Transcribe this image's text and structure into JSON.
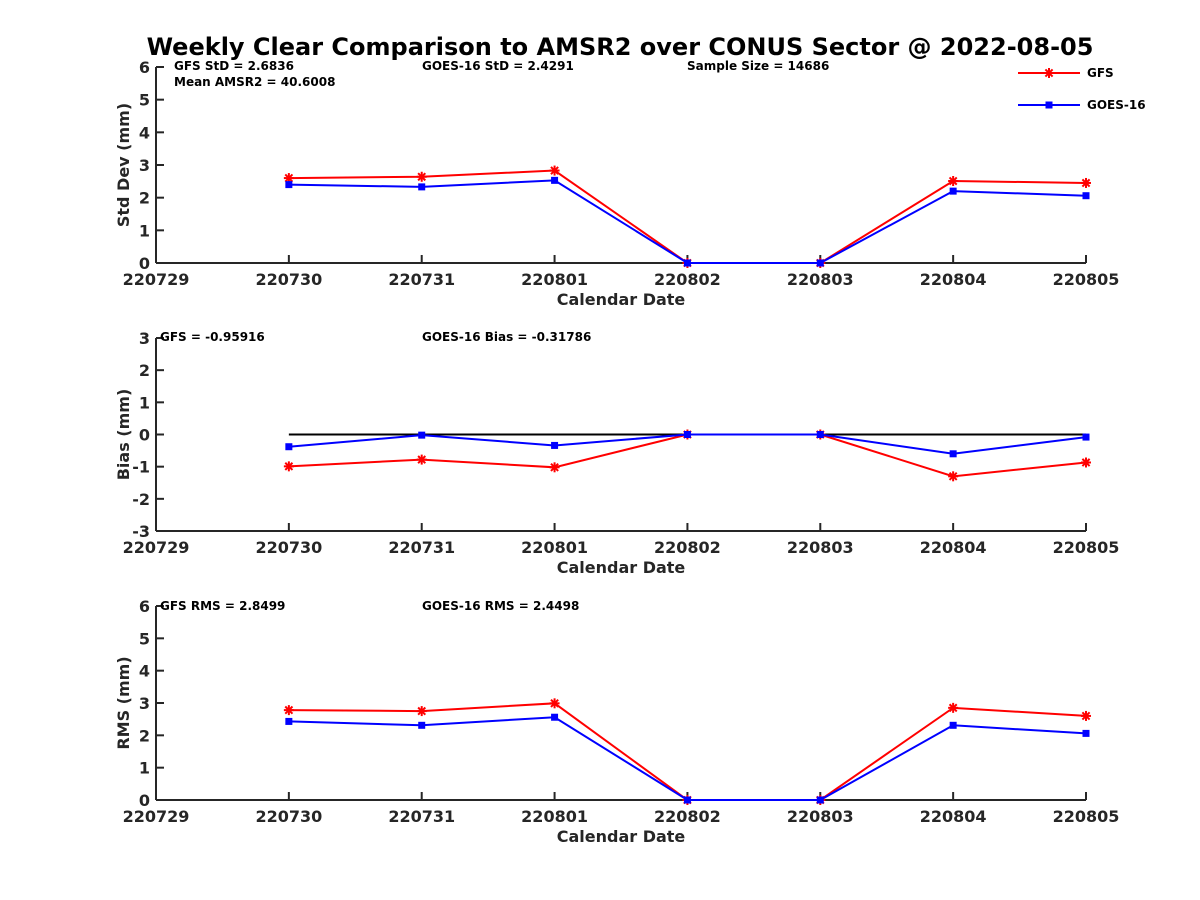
{
  "title": "Weekly Clear Comparison to AMSR2 over CONUS Sector @ 2022-08-05",
  "colors": {
    "GFS": "#ff0000",
    "GOES-16": "#0000ff",
    "zero_line": "#000000",
    "axes": "#262626"
  },
  "legend": {
    "placement": "top-right",
    "entries": [
      {
        "label": "GFS",
        "marker": "asterisk"
      },
      {
        "label": "GOES-16",
        "marker": "square"
      }
    ]
  },
  "chart_data": [
    {
      "type": "line",
      "ylabel": "Std Dev (mm)",
      "xlabel": "Calendar Date",
      "categories": [
        "220729",
        "220730",
        "220731",
        "220801",
        "220802",
        "220803",
        "220804",
        "220805"
      ],
      "ylim": [
        0,
        6
      ],
      "yticks": [
        "0",
        "1",
        "2",
        "3",
        "4",
        "5",
        "6"
      ],
      "zero_line": false,
      "series": [
        {
          "name": "GFS",
          "x": [
            "220730",
            "220731",
            "220801",
            "220802",
            "220803",
            "220804",
            "220805"
          ],
          "values": [
            2.6,
            2.64,
            2.83,
            0,
            0,
            2.51,
            2.45
          ]
        },
        {
          "name": "GOES-16",
          "x": [
            "220730",
            "220731",
            "220801",
            "220802",
            "220803",
            "220804",
            "220805"
          ],
          "values": [
            2.4,
            2.33,
            2.53,
            0,
            0,
            2.2,
            2.06
          ]
        }
      ],
      "annotations": {
        "left": [
          "GFS StD = 2.6836",
          "Mean AMSR2 = 40.6008"
        ],
        "middle": "GOES-16 StD = 2.4291",
        "right": "Sample Size = 14686"
      }
    },
    {
      "type": "line",
      "ylabel": "Bias (mm)",
      "xlabel": "Calendar Date",
      "categories": [
        "220729",
        "220730",
        "220731",
        "220801",
        "220802",
        "220803",
        "220804",
        "220805"
      ],
      "ylim": [
        -3,
        3
      ],
      "yticks": [
        "-3",
        "-2",
        "-1",
        "0",
        "1",
        "2",
        "3"
      ],
      "zero_line": true,
      "series": [
        {
          "name": "GFS",
          "x": [
            "220730",
            "220731",
            "220801",
            "220802",
            "220803",
            "220804",
            "220805"
          ],
          "values": [
            -0.99,
            -0.78,
            -1.02,
            0,
            0,
            -1.3,
            -0.87
          ]
        },
        {
          "name": "GOES-16",
          "x": [
            "220730",
            "220731",
            "220801",
            "220802",
            "220803",
            "220804",
            "220805"
          ],
          "values": [
            -0.38,
            -0.02,
            -0.34,
            0,
            0,
            -0.6,
            -0.08
          ]
        }
      ],
      "annotations": {
        "left": [
          "GFS = -0.95916"
        ],
        "middle": "GOES-16 Bias  = -0.31786",
        "right": ""
      }
    },
    {
      "type": "line",
      "ylabel": "RMS (mm)",
      "xlabel": "Calendar Date",
      "categories": [
        "220729",
        "220730",
        "220731",
        "220801",
        "220802",
        "220803",
        "220804",
        "220805"
      ],
      "ylim": [
        0,
        6
      ],
      "yticks": [
        "0",
        "1",
        "2",
        "3",
        "4",
        "5",
        "6"
      ],
      "zero_line": false,
      "series": [
        {
          "name": "GFS",
          "x": [
            "220730",
            "220731",
            "220801",
            "220802",
            "220803",
            "220804",
            "220805"
          ],
          "values": [
            2.78,
            2.75,
            2.99,
            0,
            0,
            2.85,
            2.6
          ]
        },
        {
          "name": "GOES-16",
          "x": [
            "220730",
            "220731",
            "220801",
            "220802",
            "220803",
            "220804",
            "220805"
          ],
          "values": [
            2.43,
            2.31,
            2.56,
            0,
            0,
            2.31,
            2.06
          ]
        }
      ],
      "annotations": {
        "left": [
          "GFS RMS = 2.8499"
        ],
        "middle": "GOES-16 RMS = 2.4498",
        "right": ""
      }
    }
  ]
}
